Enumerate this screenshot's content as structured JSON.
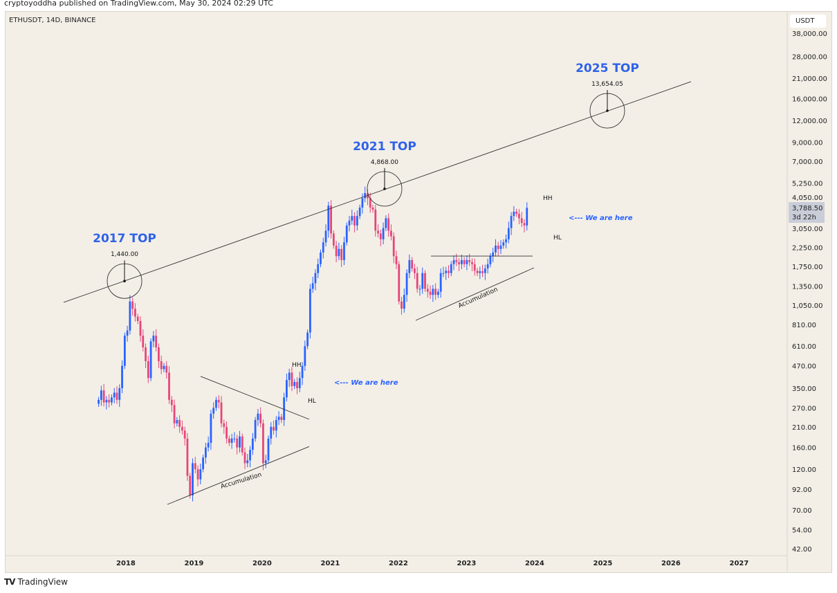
{
  "publisher_line": "cryptoyoddha published on TradingView.com, May 30, 2024 02:29 UTC",
  "symbol_line": "ETHUSDT, 14D, BINANCE",
  "currency_button": "USDT",
  "footer_brand": "TradingView",
  "colors": {
    "up": "#2962ff",
    "down": "#e6457a",
    "background": "#f3efe7",
    "annotation_blue": "#2f62e8"
  },
  "chart_data": {
    "type": "candlestick",
    "scale": "log",
    "y_ticks": [
      "38,000.00",
      "28,000.00",
      "21,000.00",
      "16,000.00",
      "12,000.00",
      "9,000.00",
      "7,000.00",
      "5,250.00",
      "4,050.00",
      "3,050.00",
      "2,250.00",
      "1,750.00",
      "1,350.00",
      "1,050.00",
      "810.00",
      "610.00",
      "470.00",
      "350.00",
      "270.00",
      "210.00",
      "160.00",
      "120.00",
      "92.00",
      "70.00",
      "54.00",
      "42.00"
    ],
    "y_tick_values": [
      38000,
      28000,
      21000,
      16000,
      12000,
      9000,
      7000,
      5250,
      4050,
      3050,
      2250,
      1750,
      1350,
      1050,
      810,
      610,
      470,
      350,
      270,
      210,
      160,
      120,
      92,
      70,
      54,
      42
    ],
    "x_ticks": [
      "2018",
      "2019",
      "2020",
      "2021",
      "2022",
      "2023",
      "2024",
      "2025",
      "2026",
      "2027"
    ],
    "ylim": [
      42,
      38000
    ],
    "xlim": [
      2016.75,
      2027.8
    ],
    "start_date": 2017.62,
    "period_days": 14,
    "closes": [
      300,
      340,
      290,
      300,
      290,
      310,
      330,
      300,
      350,
      470,
      700,
      750,
      1100,
      1000,
      900,
      850,
      700,
      600,
      500,
      400,
      650,
      700,
      600,
      500,
      450,
      470,
      430,
      300,
      280,
      220,
      230,
      210,
      200,
      180,
      110,
      85,
      130,
      120,
      105,
      120,
      140,
      160,
      170,
      250,
      270,
      300,
      290,
      220,
      210,
      180,
      170,
      180,
      180,
      160,
      185,
      150,
      130,
      135,
      155,
      180,
      230,
      250,
      220,
      130,
      135,
      180,
      210,
      200,
      230,
      240,
      230,
      310,
      390,
      430,
      360,
      380,
      350,
      400,
      470,
      610,
      730,
      1300,
      1400,
      1600,
      1800,
      2100,
      2400,
      2800,
      3900,
      2700,
      2300,
      2000,
      2200,
      1900,
      2400,
      3000,
      3200,
      3400,
      3000,
      3400,
      3800,
      4300,
      4600,
      4300,
      3800,
      3700,
      2800,
      2700,
      2500,
      2900,
      3300,
      2800,
      2600,
      2000,
      1800,
      1100,
      1000,
      1200,
      1600,
      1900,
      1700,
      1600,
      1300,
      1300,
      1600,
      1300,
      1250,
      1200,
      1300,
      1200,
      1250,
      1600,
      1600,
      1650,
      1600,
      1800,
      1900,
      1850,
      1800,
      1900,
      1800,
      1900,
      1850,
      1800,
      1650,
      1600,
      1640,
      1600,
      1700,
      1800,
      2000,
      2100,
      2300,
      2200,
      2300,
      2400,
      2500,
      2900,
      3400,
      3600,
      3500,
      3300,
      3100,
      3000,
      3788.5
    ],
    "last_price": {
      "value": "3,788.50",
      "countdown": "3d 22h"
    },
    "trendlines": [
      {
        "name": "tops-line",
        "from": [
          2017.107,
          1087
        ],
        "to": [
          2026.315,
          20050
        ]
      },
      {
        "name": "triangle-upper",
        "from": [
          2019.117,
          409
        ],
        "to": [
          2020.711,
          232
        ]
      },
      {
        "name": "accumulation-2019",
        "from": [
          2018.629,
          75.4
        ],
        "to": [
          2020.711,
          162
        ]
      },
      {
        "name": "range-top-2022",
        "from": [
          2022.497,
          2004
        ],
        "to": [
          2023.99,
          2004
        ]
      },
      {
        "name": "accumulation-2022",
        "from": [
          2022.274,
          857
        ],
        "to": [
          2024.01,
          1716
        ]
      }
    ],
    "tops": [
      {
        "label": "2017 TOP",
        "value": "1,440.00",
        "year": 2018.0,
        "price": 1440
      },
      {
        "label": "2021 TOP",
        "value": "4,868.00",
        "year": 2021.817,
        "price": 4868
      },
      {
        "label": "2025 TOP",
        "value": "13,654.05",
        "year": 2025.086,
        "price": 13654
      }
    ],
    "annotations": {
      "hh": "HH",
      "hl": "HL",
      "we_are_here": "<--- We are here",
      "accumulation": "Accumulation"
    }
  }
}
